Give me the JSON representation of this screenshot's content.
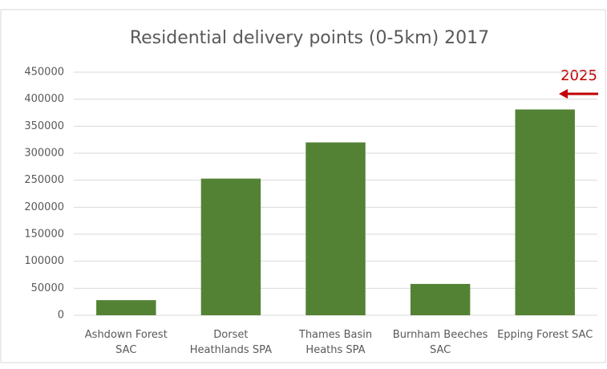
{
  "chart_data": {
    "type": "bar",
    "title": "Residential delivery points (0-5km) 2017",
    "categories": [
      "Ashdown Forest SAC",
      "Dorset Heathlands SPA",
      "Thames Basin Heaths SPA",
      "Burnham Beeches SAC",
      "Epping Forest SAC"
    ],
    "values": [
      28000,
      253000,
      320000,
      58000,
      381000
    ],
    "color": "#548235",
    "ylim": [
      0,
      450000
    ],
    "yticks": [
      0,
      50000,
      100000,
      150000,
      200000,
      250000,
      300000,
      350000,
      400000,
      450000
    ],
    "grid": true,
    "annotation": "2025"
  }
}
